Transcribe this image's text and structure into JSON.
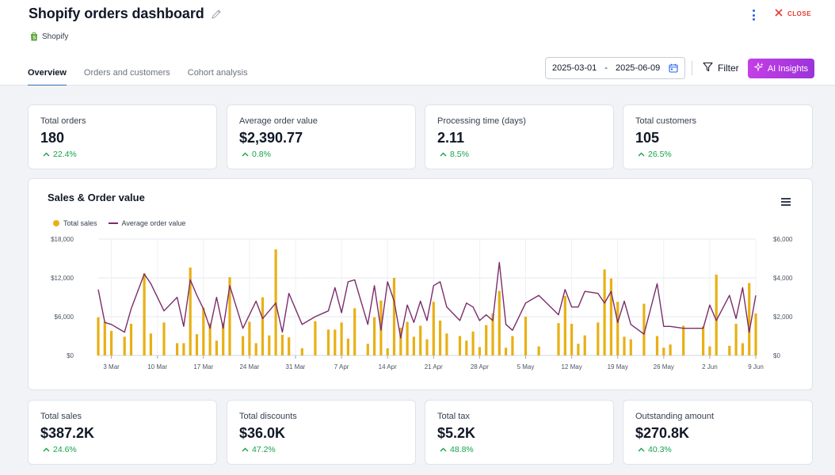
{
  "header": {
    "title": "Shopify orders dashboard",
    "source": "Shopify",
    "close_label": "CLOSE"
  },
  "tabs": [
    {
      "label": "Overview",
      "active": true
    },
    {
      "label": "Orders and customers",
      "active": false
    },
    {
      "label": "Cohort analysis",
      "active": false
    }
  ],
  "toolbar": {
    "date_start": "2025-03-01",
    "date_sep": "-",
    "date_end": "2025-06-09",
    "filter_label": "Filter",
    "ai_label": "AI Insights"
  },
  "kpis_top": [
    {
      "label": "Total orders",
      "value": "180",
      "change": "22.4%"
    },
    {
      "label": "Average order value",
      "value": "$2,390.77",
      "change": "0.8%"
    },
    {
      "label": "Processing time (days)",
      "value": "2.11",
      "change": "8.5%"
    },
    {
      "label": "Total customers",
      "value": "105",
      "change": "26.5%"
    }
  ],
  "kpis_bottom": [
    {
      "label": "Total sales",
      "value": "$387.2K",
      "change": "24.6%"
    },
    {
      "label": "Total discounts",
      "value": "$36.0K",
      "change": "47.2%"
    },
    {
      "label": "Total tax",
      "value": "$5.2K",
      "change": "48.8%"
    },
    {
      "label": "Outstanding amount",
      "value": "$270.8K",
      "change": "40.3%"
    }
  ],
  "colors": {
    "accent_tab": "#2f6fb5",
    "positive": "#16a34a",
    "bar": "#e8b014",
    "line": "#7b2d6b",
    "close": "#e53935"
  },
  "icons": [
    "pencil-icon",
    "shopify-bag-icon",
    "kebab-menu-icon",
    "close-icon",
    "calendar-icon",
    "filter-funnel-icon",
    "sparkle-icon",
    "arrow-up-icon",
    "hamburger-menu-icon"
  ],
  "chart_data": {
    "type": "bar",
    "title": "Sales & Order value",
    "legend_position": "top-left",
    "grid": true,
    "x_tick_labels": [
      "3 Mar",
      "10 Mar",
      "17 Mar",
      "24 Mar",
      "31 Mar",
      "7 Apr",
      "14 Apr",
      "21 Apr",
      "28 Apr",
      "5 May",
      "12 May",
      "19 May",
      "26 May",
      "2 Jun",
      "9 Jun"
    ],
    "x_range": [
      "2025-03-01",
      "2025-06-09"
    ],
    "y_left": {
      "ticks": [
        "$0",
        "$6,000",
        "$12,000",
        "$18,000"
      ],
      "ylim": [
        0,
        18000
      ]
    },
    "y_right": {
      "ticks": [
        "$0",
        "$2,000",
        "$4,000",
        "$6,000"
      ],
      "ylim": [
        0,
        6000
      ]
    },
    "series": [
      {
        "name": "Total sales",
        "kind": "bar",
        "axis": "left",
        "x": [
          "2025-03-01",
          "2025-03-02",
          "2025-03-03",
          "2025-03-05",
          "2025-03-06",
          "2025-03-08",
          "2025-03-09",
          "2025-03-11",
          "2025-03-13",
          "2025-03-14",
          "2025-03-15",
          "2025-03-16",
          "2025-03-17",
          "2025-03-18",
          "2025-03-19",
          "2025-03-20",
          "2025-03-21",
          "2025-03-23",
          "2025-03-24",
          "2025-03-25",
          "2025-03-26",
          "2025-03-27",
          "2025-03-28",
          "2025-03-29",
          "2025-03-30",
          "2025-04-01",
          "2025-04-03",
          "2025-04-05",
          "2025-04-06",
          "2025-04-07",
          "2025-04-08",
          "2025-04-09",
          "2025-04-11",
          "2025-04-12",
          "2025-04-13",
          "2025-04-14",
          "2025-04-15",
          "2025-04-16",
          "2025-04-17",
          "2025-04-18",
          "2025-04-19",
          "2025-04-20",
          "2025-04-21",
          "2025-04-22",
          "2025-04-23",
          "2025-04-25",
          "2025-04-26",
          "2025-04-27",
          "2025-04-28",
          "2025-04-29",
          "2025-04-30",
          "2025-05-01",
          "2025-05-02",
          "2025-05-03",
          "2025-05-05",
          "2025-05-07",
          "2025-05-10",
          "2025-05-11",
          "2025-05-12",
          "2025-05-13",
          "2025-05-14",
          "2025-05-16",
          "2025-05-17",
          "2025-05-18",
          "2025-05-19",
          "2025-05-20",
          "2025-05-21",
          "2025-05-23",
          "2025-05-25",
          "2025-05-26",
          "2025-05-27",
          "2025-05-29",
          "2025-06-01",
          "2025-06-02",
          "2025-06-03",
          "2025-06-05",
          "2025-06-06",
          "2025-06-07",
          "2025-06-08",
          "2025-06-09"
        ],
        "values": [
          5900,
          5200,
          3800,
          2900,
          4900,
          12700,
          3400,
          5100,
          1900,
          1900,
          13600,
          3300,
          7400,
          5000,
          2300,
          5100,
          12100,
          3000,
          5200,
          1900,
          9000,
          3100,
          16400,
          3200,
          2800,
          1100,
          5300,
          4000,
          4000,
          5100,
          2600,
          7300,
          1800,
          5900,
          8500,
          1100,
          12000,
          4300,
          5200,
          2900,
          4600,
          2500,
          8300,
          5400,
          3400,
          3000,
          2300,
          3700,
          1300,
          4700,
          6500,
          10000,
          1200,
          3000,
          6000,
          1400,
          5000,
          9200,
          4900,
          1800,
          3100,
          5100,
          13300,
          11900,
          8300,
          2900,
          2500,
          8000,
          3000,
          1200,
          1700,
          4600,
          4500,
          1400,
          12500,
          1500,
          4900,
          1900,
          11200,
          6500
        ]
      },
      {
        "name": "Average order value",
        "kind": "line",
        "axis": "right",
        "x": [
          "2025-03-01",
          "2025-03-02",
          "2025-03-03",
          "2025-03-05",
          "2025-03-06",
          "2025-03-08",
          "2025-03-09",
          "2025-03-11",
          "2025-03-13",
          "2025-03-14",
          "2025-03-15",
          "2025-03-16",
          "2025-03-17",
          "2025-03-18",
          "2025-03-19",
          "2025-03-20",
          "2025-03-21",
          "2025-03-23",
          "2025-03-24",
          "2025-03-25",
          "2025-03-26",
          "2025-03-27",
          "2025-03-28",
          "2025-03-29",
          "2025-03-30",
          "2025-04-01",
          "2025-04-03",
          "2025-04-05",
          "2025-04-06",
          "2025-04-07",
          "2025-04-08",
          "2025-04-09",
          "2025-04-11",
          "2025-04-12",
          "2025-04-13",
          "2025-04-14",
          "2025-04-15",
          "2025-04-16",
          "2025-04-17",
          "2025-04-18",
          "2025-04-19",
          "2025-04-20",
          "2025-04-21",
          "2025-04-22",
          "2025-04-23",
          "2025-04-25",
          "2025-04-26",
          "2025-04-27",
          "2025-04-28",
          "2025-04-29",
          "2025-04-30",
          "2025-05-01",
          "2025-05-02",
          "2025-05-03",
          "2025-05-05",
          "2025-05-07",
          "2025-05-10",
          "2025-05-11",
          "2025-05-12",
          "2025-05-13",
          "2025-05-14",
          "2025-05-16",
          "2025-05-17",
          "2025-05-18",
          "2025-05-19",
          "2025-05-20",
          "2025-05-21",
          "2025-05-23",
          "2025-05-25",
          "2025-05-26",
          "2025-05-27",
          "2025-05-29",
          "2025-06-01",
          "2025-06-02",
          "2025-06-03",
          "2025-06-05",
          "2025-06-06",
          "2025-06-07",
          "2025-06-08",
          "2025-06-09"
        ],
        "values": [
          3400,
          1700,
          1600,
          1200,
          2400,
          4200,
          3700,
          2300,
          3000,
          1500,
          3900,
          3100,
          2400,
          1400,
          3000,
          1400,
          3600,
          1400,
          2100,
          2800,
          1900,
          2300,
          2700,
          1200,
          3200,
          1600,
          2000,
          2300,
          3500,
          2200,
          3800,
          3900,
          1600,
          3600,
          1300,
          3800,
          2800,
          900,
          2600,
          1700,
          2800,
          1800,
          3600,
          3800,
          2500,
          1800,
          2700,
          2500,
          1800,
          2100,
          1800,
          4800,
          1600,
          1300,
          2700,
          3100,
          2100,
          3400,
          2500,
          2500,
          3300,
          3200,
          2700,
          3300,
          1700,
          2800,
          1600,
          1100,
          3700,
          1500,
          1500,
          1400,
          1400,
          2600,
          1800,
          3100,
          1900,
          3500,
          1200,
          3100
        ]
      }
    ]
  }
}
